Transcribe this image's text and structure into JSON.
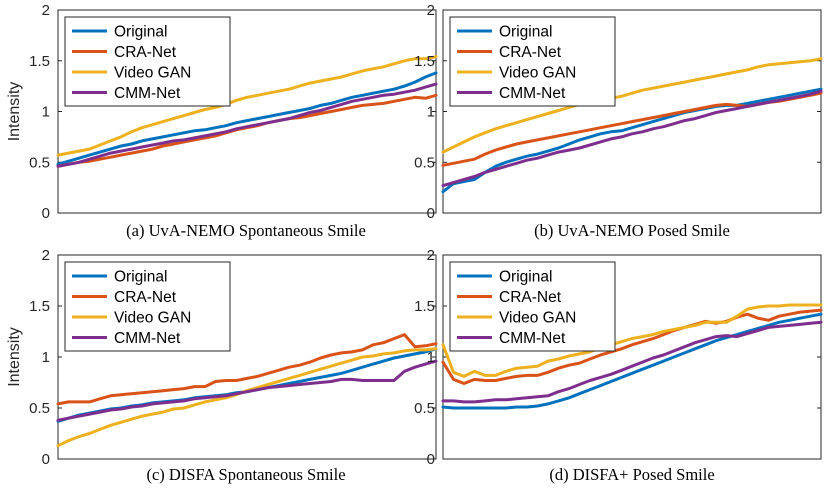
{
  "chart_data": [
    {
      "type": "line",
      "title": "(a) UvA-NEMO Spontaneous Smile",
      "ylabel": "Intensity",
      "ylim": [
        0,
        2
      ],
      "yticks": [
        "0",
        "0.5",
        "1",
        "1.5",
        "2"
      ],
      "x": [
        0,
        1,
        2,
        3,
        4,
        5,
        6,
        7,
        8,
        9,
        10,
        11,
        12,
        13,
        14,
        15,
        16,
        17,
        18,
        19,
        20,
        21,
        22,
        23,
        24,
        25,
        26,
        27,
        28,
        29,
        30,
        31,
        32,
        33,
        34,
        35,
        36
      ],
      "series": [
        {
          "name": "Original",
          "color": "#0072BD",
          "values": [
            0.48,
            0.51,
            0.54,
            0.57,
            0.6,
            0.63,
            0.66,
            0.68,
            0.71,
            0.73,
            0.75,
            0.77,
            0.79,
            0.81,
            0.82,
            0.84,
            0.86,
            0.89,
            0.91,
            0.93,
            0.95,
            0.97,
            0.99,
            1.01,
            1.03,
            1.06,
            1.08,
            1.11,
            1.14,
            1.16,
            1.18,
            1.2,
            1.22,
            1.25,
            1.29,
            1.34,
            1.38
          ]
        },
        {
          "name": "CRA-Net",
          "color": "#D95319",
          "values": [
            0.46,
            0.48,
            0.5,
            0.51,
            0.53,
            0.55,
            0.57,
            0.59,
            0.61,
            0.63,
            0.66,
            0.68,
            0.7,
            0.72,
            0.74,
            0.76,
            0.79,
            0.82,
            0.84,
            0.86,
            0.89,
            0.91,
            0.93,
            0.94,
            0.96,
            0.98,
            1.0,
            1.02,
            1.04,
            1.06,
            1.07,
            1.08,
            1.1,
            1.12,
            1.14,
            1.13,
            1.16
          ]
        },
        {
          "name": "Video GAN",
          "color": "#EDB120",
          "values": [
            0.57,
            0.59,
            0.61,
            0.63,
            0.67,
            0.71,
            0.75,
            0.8,
            0.84,
            0.87,
            0.9,
            0.93,
            0.96,
            0.99,
            1.02,
            1.04,
            1.07,
            1.11,
            1.14,
            1.16,
            1.18,
            1.2,
            1.22,
            1.25,
            1.28,
            1.3,
            1.32,
            1.34,
            1.37,
            1.4,
            1.42,
            1.44,
            1.47,
            1.5,
            1.52,
            1.52,
            1.54
          ]
        },
        {
          "name": "CMM-Net",
          "color": "#7E2F8E",
          "values": [
            0.46,
            0.48,
            0.5,
            0.53,
            0.56,
            0.59,
            0.61,
            0.63,
            0.65,
            0.67,
            0.69,
            0.71,
            0.72,
            0.74,
            0.76,
            0.78,
            0.8,
            0.83,
            0.85,
            0.87,
            0.89,
            0.91,
            0.93,
            0.96,
            0.99,
            1.01,
            1.04,
            1.07,
            1.1,
            1.12,
            1.14,
            1.16,
            1.17,
            1.19,
            1.21,
            1.24,
            1.27
          ]
        }
      ]
    },
    {
      "type": "line",
      "title": "(b) UvA-NEMO Posed Smile",
      "ylabel": "",
      "ylim": [
        0,
        2
      ],
      "yticks": [
        "0",
        "0.5",
        "1",
        "1.5",
        "2"
      ],
      "x": [
        0,
        1,
        2,
        3,
        4,
        5,
        6,
        7,
        8,
        9,
        10,
        11,
        12,
        13,
        14,
        15,
        16,
        17,
        18,
        19,
        20,
        21,
        22,
        23,
        24,
        25,
        26,
        27,
        28,
        29,
        30,
        31,
        32,
        33,
        34,
        35,
        36
      ],
      "series": [
        {
          "name": "Original",
          "color": "#0072BD",
          "values": [
            0.21,
            0.29,
            0.31,
            0.33,
            0.4,
            0.46,
            0.5,
            0.53,
            0.56,
            0.58,
            0.61,
            0.64,
            0.68,
            0.72,
            0.75,
            0.78,
            0.8,
            0.81,
            0.84,
            0.87,
            0.9,
            0.93,
            0.96,
            0.99,
            1.01,
            1.03,
            1.05,
            1.06,
            1.06,
            1.08,
            1.1,
            1.12,
            1.14,
            1.16,
            1.18,
            1.2,
            1.22
          ]
        },
        {
          "name": "CRA-Net",
          "color": "#D95319",
          "values": [
            0.47,
            0.49,
            0.51,
            0.53,
            0.58,
            0.62,
            0.65,
            0.68,
            0.7,
            0.72,
            0.74,
            0.76,
            0.78,
            0.8,
            0.82,
            0.84,
            0.86,
            0.88,
            0.9,
            0.92,
            0.94,
            0.96,
            0.98,
            1.0,
            1.02,
            1.04,
            1.06,
            1.07,
            1.06,
            1.05,
            1.07,
            1.09,
            1.1,
            1.12,
            1.14,
            1.16,
            1.18
          ]
        },
        {
          "name": "Video GAN",
          "color": "#EDB120",
          "values": [
            0.6,
            0.65,
            0.7,
            0.75,
            0.79,
            0.83,
            0.86,
            0.89,
            0.92,
            0.95,
            0.98,
            1.01,
            1.04,
            1.07,
            1.09,
            1.11,
            1.13,
            1.15,
            1.18,
            1.21,
            1.23,
            1.25,
            1.27,
            1.29,
            1.31,
            1.33,
            1.35,
            1.37,
            1.39,
            1.41,
            1.44,
            1.46,
            1.47,
            1.48,
            1.49,
            1.5,
            1.52
          ]
        },
        {
          "name": "CMM-Net",
          "color": "#7E2F8E",
          "values": [
            0.27,
            0.3,
            0.33,
            0.36,
            0.4,
            0.43,
            0.46,
            0.49,
            0.52,
            0.54,
            0.57,
            0.6,
            0.62,
            0.64,
            0.67,
            0.7,
            0.73,
            0.75,
            0.78,
            0.8,
            0.83,
            0.85,
            0.88,
            0.91,
            0.93,
            0.96,
            0.99,
            1.01,
            1.03,
            1.05,
            1.07,
            1.09,
            1.11,
            1.13,
            1.15,
            1.17,
            1.2
          ]
        }
      ]
    },
    {
      "type": "line",
      "title": "(c) DISFA Spontaneous Smile",
      "ylabel": "Intensity",
      "ylim": [
        0,
        2
      ],
      "yticks": [
        "0",
        "0.5",
        "1",
        "1.5",
        "2"
      ],
      "x": [
        0,
        1,
        2,
        3,
        4,
        5,
        6,
        7,
        8,
        9,
        10,
        11,
        12,
        13,
        14,
        15,
        16,
        17,
        18,
        19,
        20,
        21,
        22,
        23,
        24,
        25,
        26,
        27,
        28,
        29,
        30,
        31,
        32,
        33,
        34,
        35,
        36
      ],
      "series": [
        {
          "name": "Original",
          "color": "#0072BD",
          "values": [
            0.37,
            0.4,
            0.43,
            0.45,
            0.47,
            0.49,
            0.5,
            0.52,
            0.53,
            0.55,
            0.56,
            0.57,
            0.58,
            0.6,
            0.61,
            0.62,
            0.63,
            0.65,
            0.66,
            0.68,
            0.7,
            0.72,
            0.74,
            0.76,
            0.78,
            0.8,
            0.82,
            0.84,
            0.87,
            0.9,
            0.93,
            0.96,
            0.99,
            1.01,
            1.03,
            1.05,
            1.08
          ]
        },
        {
          "name": "CRA-Net",
          "color": "#D95319",
          "values": [
            0.54,
            0.56,
            0.56,
            0.56,
            0.59,
            0.62,
            0.63,
            0.64,
            0.65,
            0.66,
            0.67,
            0.68,
            0.69,
            0.71,
            0.71,
            0.76,
            0.77,
            0.77,
            0.79,
            0.81,
            0.84,
            0.87,
            0.9,
            0.92,
            0.95,
            0.99,
            1.02,
            1.04,
            1.05,
            1.07,
            1.12,
            1.14,
            1.18,
            1.22,
            1.1,
            1.11,
            1.13
          ]
        },
        {
          "name": "Video GAN",
          "color": "#EDB120",
          "values": [
            0.13,
            0.18,
            0.22,
            0.25,
            0.29,
            0.33,
            0.36,
            0.39,
            0.42,
            0.44,
            0.46,
            0.49,
            0.5,
            0.53,
            0.56,
            0.58,
            0.6,
            0.63,
            0.67,
            0.7,
            0.73,
            0.76,
            0.79,
            0.82,
            0.85,
            0.88,
            0.91,
            0.94,
            0.97,
            1.0,
            1.01,
            1.03,
            1.04,
            1.06,
            1.07,
            1.07,
            1.08
          ]
        },
        {
          "name": "CMM-Net",
          "color": "#7E2F8E",
          "values": [
            0.38,
            0.4,
            0.42,
            0.44,
            0.46,
            0.48,
            0.49,
            0.51,
            0.52,
            0.54,
            0.55,
            0.56,
            0.57,
            0.59,
            0.6,
            0.61,
            0.62,
            0.64,
            0.66,
            0.68,
            0.7,
            0.71,
            0.72,
            0.73,
            0.74,
            0.75,
            0.76,
            0.78,
            0.78,
            0.77,
            0.77,
            0.77,
            0.77,
            0.86,
            0.9,
            0.93,
            0.96
          ]
        }
      ]
    },
    {
      "type": "line",
      "title": "(d) DISFA+ Posed Smile",
      "ylabel": "",
      "ylim": [
        0,
        2
      ],
      "yticks": [
        "0",
        "0.5",
        "1",
        "1.5",
        "2"
      ],
      "x": [
        0,
        1,
        2,
        3,
        4,
        5,
        6,
        7,
        8,
        9,
        10,
        11,
        12,
        13,
        14,
        15,
        16,
        17,
        18,
        19,
        20,
        21,
        22,
        23,
        24,
        25,
        26,
        27,
        28,
        29,
        30,
        31,
        32,
        33,
        34,
        35,
        36
      ],
      "series": [
        {
          "name": "Original",
          "color": "#0072BD",
          "values": [
            0.51,
            0.5,
            0.5,
            0.5,
            0.5,
            0.5,
            0.5,
            0.51,
            0.51,
            0.52,
            0.54,
            0.57,
            0.6,
            0.64,
            0.68,
            0.72,
            0.76,
            0.8,
            0.84,
            0.88,
            0.92,
            0.96,
            1.0,
            1.04,
            1.08,
            1.12,
            1.16,
            1.19,
            1.22,
            1.25,
            1.28,
            1.31,
            1.34,
            1.36,
            1.38,
            1.4,
            1.42
          ]
        },
        {
          "name": "CRA-Net",
          "color": "#D95319",
          "values": [
            0.95,
            0.78,
            0.74,
            0.78,
            0.77,
            0.77,
            0.79,
            0.81,
            0.82,
            0.82,
            0.85,
            0.89,
            0.92,
            0.94,
            0.98,
            1.02,
            1.05,
            1.08,
            1.12,
            1.15,
            1.18,
            1.22,
            1.26,
            1.29,
            1.32,
            1.35,
            1.33,
            1.35,
            1.39,
            1.42,
            1.38,
            1.36,
            1.4,
            1.42,
            1.44,
            1.45,
            1.46
          ]
        },
        {
          "name": "Video GAN",
          "color": "#EDB120",
          "values": [
            1.12,
            0.85,
            0.81,
            0.86,
            0.82,
            0.82,
            0.86,
            0.89,
            0.9,
            0.91,
            0.96,
            0.98,
            1.01,
            1.03,
            1.05,
            1.09,
            1.12,
            1.15,
            1.18,
            1.2,
            1.22,
            1.25,
            1.27,
            1.29,
            1.31,
            1.34,
            1.34,
            1.34,
            1.4,
            1.47,
            1.49,
            1.5,
            1.5,
            1.51,
            1.51,
            1.51,
            1.51
          ]
        },
        {
          "name": "CMM-Net",
          "color": "#7E2F8E",
          "values": [
            0.57,
            0.57,
            0.56,
            0.56,
            0.57,
            0.58,
            0.58,
            0.59,
            0.6,
            0.61,
            0.62,
            0.66,
            0.69,
            0.73,
            0.77,
            0.8,
            0.83,
            0.87,
            0.91,
            0.95,
            0.99,
            1.02,
            1.06,
            1.1,
            1.14,
            1.17,
            1.2,
            1.21,
            1.2,
            1.23,
            1.26,
            1.29,
            1.3,
            1.31,
            1.32,
            1.33,
            1.34
          ]
        }
      ]
    }
  ]
}
